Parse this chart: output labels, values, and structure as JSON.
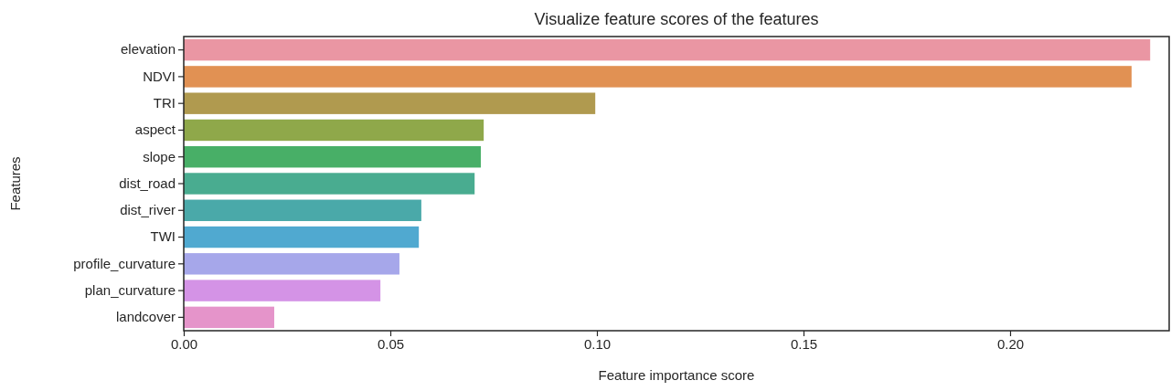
{
  "chart_data": {
    "type": "bar",
    "orientation": "horizontal",
    "title": "Visualize feature scores of the features",
    "xlabel": "Feature importance score",
    "ylabel": "Features",
    "categories": [
      "elevation",
      "NDVI",
      "TRI",
      "aspect",
      "slope",
      "dist_road",
      "dist_river",
      "TWI",
      "profile_curvature",
      "plan_curvature",
      "landcover"
    ],
    "values": [
      0.2339,
      0.2294,
      0.0996,
      0.0726,
      0.0719,
      0.0704,
      0.0575,
      0.0569,
      0.0522,
      0.0476,
      0.0219
    ],
    "colors": [
      "#ea96a3",
      "#e19153",
      "#b09a4f",
      "#8fa84a",
      "#48af67",
      "#49ac90",
      "#4aa9a9",
      "#50a9d0",
      "#a6a7ea",
      "#d493e6",
      "#e594ca"
    ],
    "xlim": [
      0,
      0.2385
    ],
    "xticks": [
      {
        "value": 0,
        "label": "0.00"
      },
      {
        "value": 0.05,
        "label": "0.05"
      },
      {
        "value": 0.1,
        "label": "0.10"
      },
      {
        "value": 0.15,
        "label": "0.15"
      },
      {
        "value": 0.2,
        "label": "0.20"
      }
    ],
    "grid": false
  }
}
